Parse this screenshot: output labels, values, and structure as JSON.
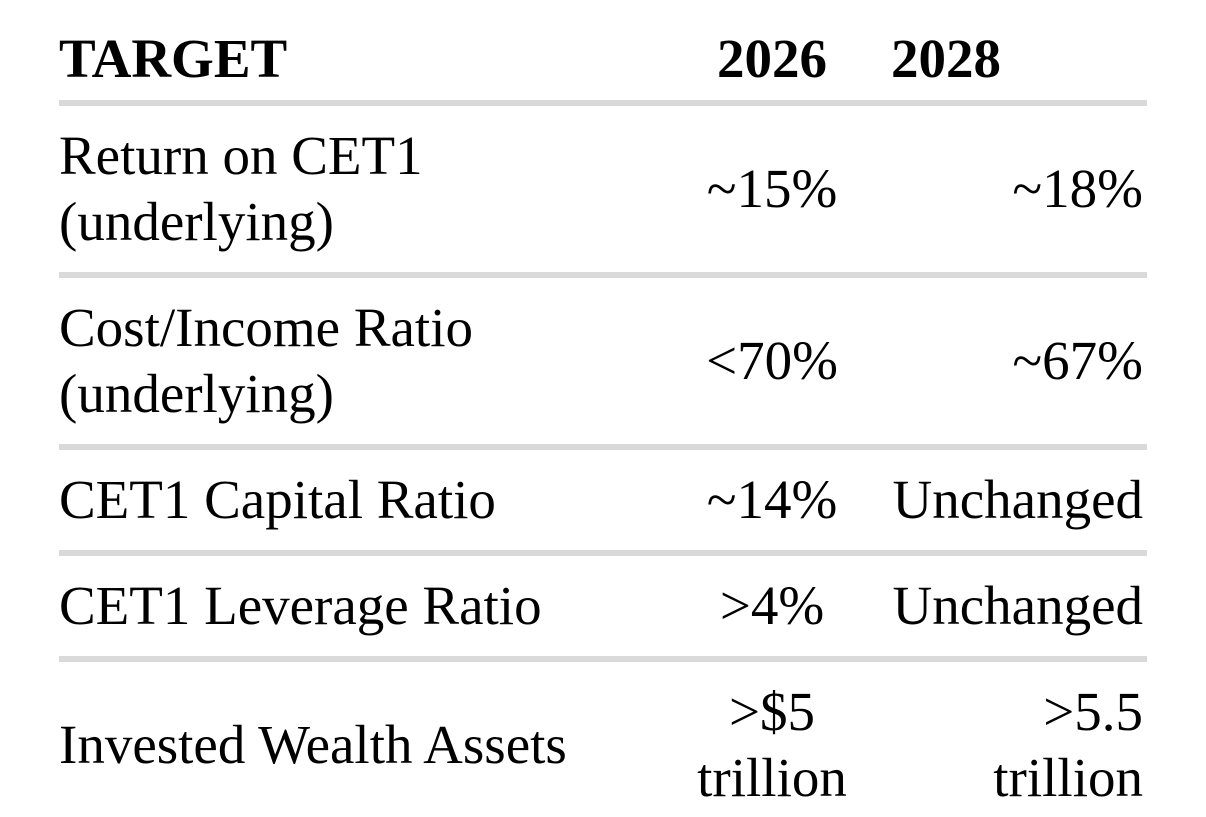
{
  "page": {
    "background": "#ffffff",
    "text_color": "#000000",
    "divider_color": "#d9d9d9"
  },
  "table": {
    "columns": [
      {
        "key": "target",
        "label": "TARGET"
      },
      {
        "key": "2026",
        "label": "2026"
      },
      {
        "key": "2028",
        "label": "2028"
      }
    ],
    "rows": [
      {
        "target": "Return on CET1 (underlying)",
        "y2026": "~15%",
        "y2028": "~18%"
      },
      {
        "target": "Cost/Income Ratio (underlying)",
        "y2026": "<70%",
        "y2028": "~67%"
      },
      {
        "target": "CET1 Capital Ratio",
        "y2026": "~14%",
        "y2028": "Unchanged"
      },
      {
        "target": "CET1 Leverage Ratio",
        "y2026": ">4%",
        "y2028": "Unchanged"
      },
      {
        "target": "Invested Wealth Assets",
        "y2026": ">$5 trillion",
        "y2028": ">5.5 trillion"
      }
    ]
  }
}
